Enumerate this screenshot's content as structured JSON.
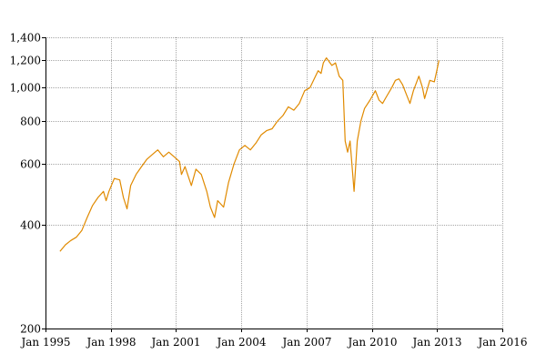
{
  "chart_data": {
    "type": "line",
    "title": "",
    "xlabel": "",
    "ylabel": "",
    "y_scale": "log",
    "ylim": [
      200,
      1400
    ],
    "xlim": [
      "1995-01-01",
      "2016-01-01"
    ],
    "grid": true,
    "line_color": "#e08a00",
    "y_ticks": [
      {
        "value": 200,
        "label": "200"
      },
      {
        "value": 400,
        "label": "400"
      },
      {
        "value": 600,
        "label": "600"
      },
      {
        "value": 800,
        "label": "800"
      },
      {
        "value": 1000,
        "label": "1,000"
      },
      {
        "value": 1200,
        "label": "1,200"
      },
      {
        "value": 1400,
        "label": "1,400"
      }
    ],
    "x_ticks": [
      {
        "value": "1995-01-01",
        "label": "Jan 1995"
      },
      {
        "value": "1998-01-01",
        "label": "Jan 1998"
      },
      {
        "value": "2001-01-01",
        "label": "Jan 2001"
      },
      {
        "value": "2004-01-01",
        "label": "Jan 2004"
      },
      {
        "value": "2007-01-01",
        "label": "Jan 2007"
      },
      {
        "value": "2010-01-01",
        "label": "Jan 2010"
      },
      {
        "value": "2013-01-01",
        "label": "Jan 2013"
      },
      {
        "value": "2016-01-01",
        "label": "Jan 2016"
      }
    ],
    "series": [
      {
        "x": [
          "1995-09-01",
          "1995-12-01",
          "1996-03-01",
          "1996-06-01",
          "1996-09-01",
          "1996-12-01",
          "1997-03-01",
          "1997-06-01",
          "1997-09-01",
          "1997-10-15",
          "1997-12-01",
          "1998-03-01",
          "1998-06-01",
          "1998-08-01",
          "1998-10-01",
          "1998-12-01",
          "1999-03-01",
          "1999-06-01",
          "1999-09-01",
          "1999-12-01",
          "2000-03-01",
          "2000-06-01",
          "2000-09-01",
          "2000-12-01",
          "2001-03-01",
          "2001-04-01",
          "2001-06-01",
          "2001-09-15",
          "2001-12-01",
          "2002-03-01",
          "2002-06-01",
          "2002-08-01",
          "2002-10-10",
          "2002-12-01",
          "2003-03-10",
          "2003-06-01",
          "2003-09-01",
          "2003-12-01",
          "2004-03-01",
          "2004-06-01",
          "2004-09-01",
          "2004-12-01",
          "2005-03-01",
          "2005-06-01",
          "2005-09-01",
          "2005-12-01",
          "2006-03-01",
          "2006-06-01",
          "2006-09-01",
          "2006-12-01",
          "2007-03-01",
          "2007-06-01",
          "2007-07-15",
          "2007-09-01",
          "2007-10-10",
          "2007-12-01",
          "2008-03-01",
          "2008-05-01",
          "2008-07-01",
          "2008-09-01",
          "2008-10-10",
          "2008-11-20",
          "2009-01-01",
          "2009-03-09",
          "2009-05-01",
          "2009-07-01",
          "2009-09-01",
          "2009-12-01",
          "2010-03-01",
          "2010-05-01",
          "2010-07-01",
          "2010-09-01",
          "2010-12-01",
          "2011-02-01",
          "2011-04-01",
          "2011-06-01",
          "2011-08-10",
          "2011-10-03",
          "2011-12-01",
          "2012-03-01",
          "2012-05-01",
          "2012-06-05",
          "2012-09-01",
          "2012-11-15",
          "2013-01-01",
          "2013-02-01"
        ],
        "y": [
          335,
          350,
          360,
          368,
          385,
          420,
          455,
          480,
          500,
          470,
          500,
          545,
          540,
          480,
          445,
          520,
          560,
          590,
          620,
          640,
          660,
          630,
          650,
          630,
          610,
          560,
          590,
          520,
          580,
          560,
          500,
          450,
          420,
          470,
          450,
          530,
          600,
          660,
          680,
          660,
          690,
          730,
          750,
          760,
          800,
          830,
          880,
          860,
          900,
          980,
          1000,
          1080,
          1120,
          1100,
          1180,
          1220,
          1160,
          1180,
          1080,
          1050,
          700,
          650,
          700,
          500,
          700,
          800,
          870,
          920,
          980,
          920,
          900,
          940,
          1000,
          1050,
          1060,
          1020,
          950,
          900,
          980,
          1080,
          1000,
          930,
          1050,
          1040,
          1130,
          1200
        ]
      }
    ]
  }
}
